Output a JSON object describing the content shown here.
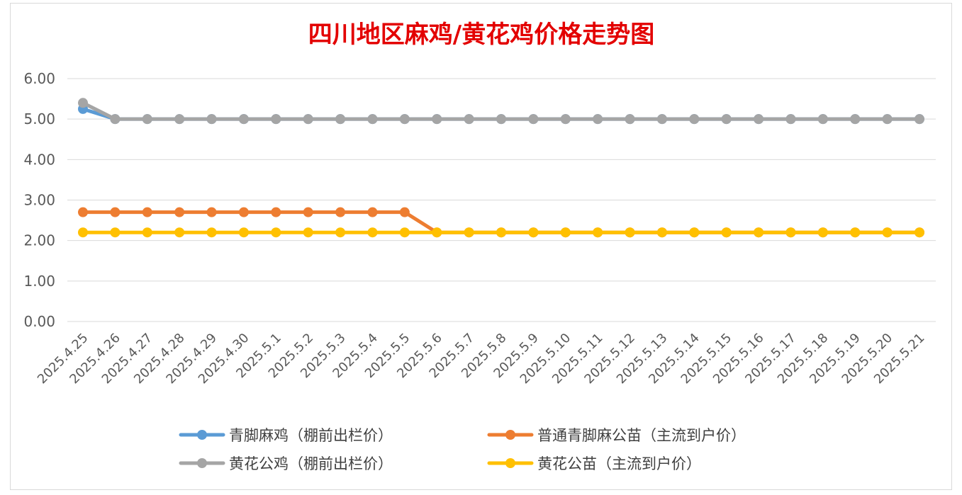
{
  "chart_data": {
    "type": "line",
    "title": "四川地区麻鸡/黄花鸡价格走势图",
    "xlabel": "",
    "ylabel": "",
    "ylim": [
      0,
      6
    ],
    "yticks": [
      "0.00",
      "1.00",
      "2.00",
      "3.00",
      "4.00",
      "5.00",
      "6.00"
    ],
    "grid": true,
    "legend_position": "bottom",
    "categories": [
      "2025.4.25",
      "2025.4.26",
      "2025.4.27",
      "2025.4.28",
      "2025.4.29",
      "2025.4.30",
      "2025.5.1",
      "2025.5.2",
      "2025.5.3",
      "2025.5.4",
      "2025.5.5",
      "2025.5.6",
      "2025.5.7",
      "2025.5.8",
      "2025.5.9",
      "2025.5.10",
      "2025.5.11",
      "2025.5.12",
      "2025.5.13",
      "2025.5.14",
      "2025.5.15",
      "2025.5.16",
      "2025.5.17",
      "2025.5.18",
      "2025.5.19",
      "2025.5.20",
      "2025.5.21"
    ],
    "series": [
      {
        "name": "青脚麻鸡（棚前出栏价）",
        "color": "#5b9bd5",
        "values": [
          5.25,
          5,
          5,
          5,
          5,
          5,
          5,
          5,
          5,
          5,
          5,
          5,
          5,
          5,
          5,
          5,
          5,
          5,
          5,
          5,
          5,
          5,
          5,
          5,
          5,
          5,
          5
        ]
      },
      {
        "name": "普通青脚麻公苗（主流到户价）",
        "color": "#ed7d31",
        "values": [
          2.7,
          2.7,
          2.7,
          2.7,
          2.7,
          2.7,
          2.7,
          2.7,
          2.7,
          2.7,
          2.7,
          2.2,
          2.2,
          2.2,
          2.2,
          2.2,
          2.2,
          2.2,
          2.2,
          2.2,
          2.2,
          2.2,
          2.2,
          2.2,
          2.2,
          2.2,
          2.2
        ]
      },
      {
        "name": "黄花公鸡（棚前出栏价）",
        "color": "#a5a5a5",
        "values": [
          5.4,
          5,
          5,
          5,
          5,
          5,
          5,
          5,
          5,
          5,
          5,
          5,
          5,
          5,
          5,
          5,
          5,
          5,
          5,
          5,
          5,
          5,
          5,
          5,
          5,
          5,
          5
        ]
      },
      {
        "name": "黄花公苗（主流到户价）",
        "color": "#ffc000",
        "values": [
          2.2,
          2.2,
          2.2,
          2.2,
          2.2,
          2.2,
          2.2,
          2.2,
          2.2,
          2.2,
          2.2,
          2.2,
          2.2,
          2.2,
          2.2,
          2.2,
          2.2,
          2.2,
          2.2,
          2.2,
          2.2,
          2.2,
          2.2,
          2.2,
          2.2,
          2.2,
          2.2
        ]
      }
    ],
    "draw_order": [
      0,
      2,
      1,
      3
    ]
  }
}
